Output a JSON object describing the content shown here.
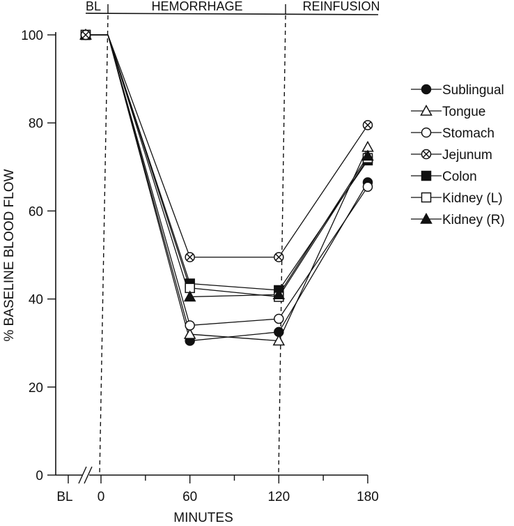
{
  "chart_data": {
    "type": "line",
    "ylabel": "% BASELINE BLOOD FLOW",
    "xlabel": "MINUTES",
    "ylim": [
      0,
      100
    ],
    "yticks": [
      0,
      20,
      40,
      60,
      80,
      100
    ],
    "xtick_labels": [
      "BL",
      "0",
      "60",
      "120",
      "180"
    ],
    "x_axis_break": true,
    "phases": [
      {
        "label": "BL"
      },
      {
        "label": "HEMORRHAGE"
      },
      {
        "label": "REINFUSION"
      }
    ],
    "x": [
      "BL",
      60,
      120,
      180
    ],
    "series": [
      {
        "name": "Sublingual",
        "marker": "filled-circle",
        "values": [
          100,
          30.5,
          32.5,
          66.5
        ]
      },
      {
        "name": "Tongue",
        "marker": "open-triangle",
        "values": [
          100,
          32,
          30.5,
          74.5
        ]
      },
      {
        "name": "Stomach",
        "marker": "open-circle",
        "values": [
          100,
          34,
          35.5,
          65.5
        ]
      },
      {
        "name": "Jejunum",
        "marker": "circle-x",
        "values": [
          100,
          49.5,
          49.5,
          79.5
        ]
      },
      {
        "name": "Colon",
        "marker": "filled-square",
        "values": [
          100,
          43.5,
          42,
          71.5
        ]
      },
      {
        "name": "Kidney (L)",
        "marker": "open-square",
        "values": [
          100,
          42.5,
          40.5,
          72
        ]
      },
      {
        "name": "Kidney (R)",
        "marker": "filled-triangle",
        "values": [
          100,
          40.5,
          41,
          72.5
        ]
      }
    ],
    "legend_position": "right"
  }
}
